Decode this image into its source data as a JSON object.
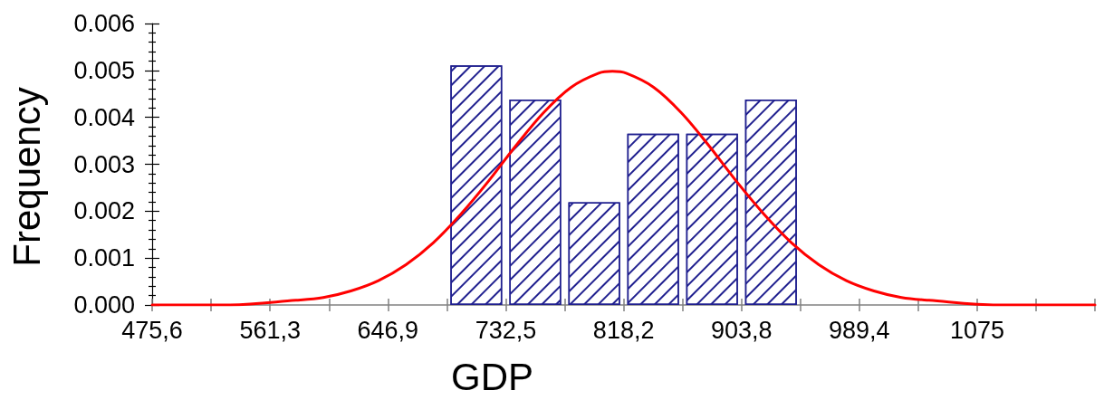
{
  "chart_data": {
    "type": "histogram",
    "xlabel": "GDP",
    "ylabel": "Frequency",
    "marker": "none",
    "series": [
      {
        "color": "#20208f",
        "bins": [
          689.7,
          732.5,
          775.4,
          818.2,
          861,
          903.8,
          946.6
        ],
        "values": [
          0.00511,
          0.00438,
          0.00219,
          0.00365,
          0.00365,
          0.00438
        ]
      },
      {
        "type": "line",
        "color": "#ff0000",
        "x": [
          475.6,
          530,
          580,
          600,
          620,
          640,
          660,
          680,
          700,
          720,
          740,
          760,
          780,
          800,
          810,
          820,
          840,
          860,
          880,
          900,
          920,
          940,
          960,
          980,
          1000,
          1020,
          1040,
          1090,
          1160.6
        ],
        "values": [
          0,
          0,
          0.0001,
          0.00016,
          0.0003,
          0.00052,
          0.00086,
          0.00133,
          0.00194,
          0.00264,
          0.0034,
          0.0041,
          0.00464,
          0.00494,
          0.00498,
          0.00494,
          0.00464,
          0.0041,
          0.0034,
          0.00264,
          0.00194,
          0.00133,
          0.00086,
          0.00052,
          0.0003,
          0.00016,
          0.0001,
          0,
          0
        ]
      }
    ],
    "xlim": [
      475.6,
      1160.6
    ],
    "xticks": [
      {
        "value": 475.6,
        "label": "475,6"
      },
      {
        "value": 518.4,
        "label": null
      },
      {
        "value": 561.3,
        "label": "561,3"
      },
      {
        "value": 604.1,
        "label": null
      },
      {
        "value": 646.9,
        "label": "646,9"
      },
      {
        "value": 689.7,
        "label": null
      },
      {
        "value": 732.5,
        "label": "732,5"
      },
      {
        "value": 775.4,
        "label": null
      },
      {
        "value": 818.2,
        "label": "818,2"
      },
      {
        "value": 861,
        "label": null
      },
      {
        "value": 903.8,
        "label": "903,8"
      },
      {
        "value": 946.6,
        "label": null
      },
      {
        "value": 989.4,
        "label": "989,4"
      },
      {
        "value": 1032.2,
        "label": null
      },
      {
        "value": 1075,
        "label": "1075"
      },
      {
        "value": 1117.8,
        "label": null
      },
      {
        "value": 1160.6,
        "label": null
      }
    ],
    "ylim": [
      0,
      0.006
    ],
    "yticks": [
      {
        "value": 0,
        "label": "0.000"
      },
      {
        "value": 0.0002,
        "label": null
      },
      {
        "value": 0.0004,
        "label": null
      },
      {
        "value": 0.0006,
        "label": null
      },
      {
        "value": 0.0008,
        "label": null
      },
      0.001,
      {
        "value": 0.0012,
        "label": null
      },
      {
        "value": 0.0014,
        "label": null
      },
      {
        "value": 0.0016,
        "label": null
      },
      {
        "value": 0.0018,
        "label": null
      },
      0.002,
      {
        "value": 0.0022,
        "label": null
      },
      {
        "value": 0.0024,
        "label": null
      },
      {
        "value": 0.0026,
        "label": null
      },
      {
        "value": 0.0028,
        "label": null
      },
      0.003,
      {
        "value": 0.0032,
        "label": null
      },
      {
        "value": 0.0034,
        "label": null
      },
      {
        "value": 0.0036,
        "label": null
      },
      {
        "value": 0.0038,
        "label": null
      },
      0.004,
      {
        "value": 0.0042,
        "label": null
      },
      {
        "value": 0.0044,
        "label": null
      },
      {
        "value": 0.0046,
        "label": null
      },
      {
        "value": 0.0048,
        "label": null
      },
      0.005,
      {
        "value": 0.0052,
        "label": null
      },
      {
        "value": 0.0054,
        "label": null
      },
      {
        "value": 0.0056,
        "label": null
      },
      {
        "value": 0.0058,
        "label": null
      },
      0.006
    ]
  }
}
